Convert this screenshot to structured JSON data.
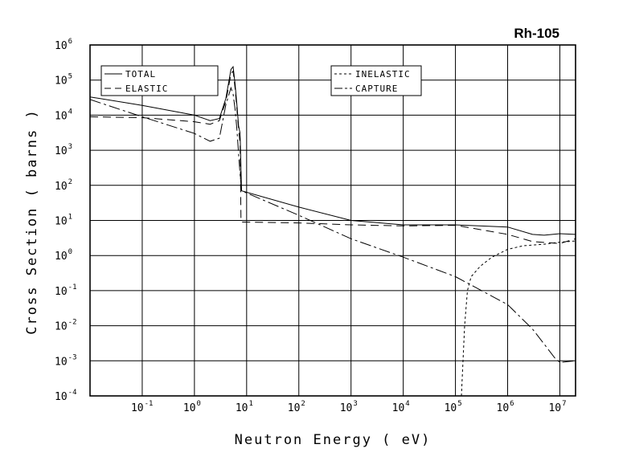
{
  "chart_data": {
    "type": "line",
    "title": "Rh-105",
    "xlabel": "Neutron Energy ( eV)",
    "ylabel": "Cross Section ( barns )",
    "xscale": "log",
    "yscale": "log",
    "xlim": [
      0.01,
      20000000
    ],
    "ylim": [
      0.0001,
      1000000
    ],
    "grid": true,
    "legend_placement": "top",
    "x_ticks": [
      {
        "base": "10",
        "exp": "-1",
        "value": 0.1
      },
      {
        "base": "10",
        "exp": "0",
        "value": 1
      },
      {
        "base": "10",
        "exp": "1",
        "value": 10
      },
      {
        "base": "10",
        "exp": "2",
        "value": 100
      },
      {
        "base": "10",
        "exp": "3",
        "value": 1000
      },
      {
        "base": "10",
        "exp": "4",
        "value": 10000
      },
      {
        "base": "10",
        "exp": "5",
        "value": 100000
      },
      {
        "base": "10",
        "exp": "6",
        "value": 1000000
      },
      {
        "base": "10",
        "exp": "7",
        "value": 10000000
      }
    ],
    "y_ticks": [
      {
        "base": "10",
        "exp": "6",
        "value": 1000000
      },
      {
        "base": "10",
        "exp": "5",
        "value": 100000
      },
      {
        "base": "10",
        "exp": "4",
        "value": 10000
      },
      {
        "base": "10",
        "exp": "3",
        "value": 1000
      },
      {
        "base": "10",
        "exp": "2",
        "value": 100
      },
      {
        "base": "10",
        "exp": "1",
        "value": 10
      },
      {
        "base": "10",
        "exp": "0",
        "value": 1
      },
      {
        "base": "10",
        "exp": "-1",
        "value": 0.1
      },
      {
        "base": "10",
        "exp": "-2",
        "value": 0.01
      },
      {
        "base": "10",
        "exp": "-3",
        "value": 0.001
      },
      {
        "base": "10",
        "exp": "-4",
        "value": 0.0001
      }
    ],
    "series": [
      {
        "name": "TOTAL",
        "dash": "",
        "points": [
          [
            0.01,
            33000
          ],
          [
            0.1,
            19000
          ],
          [
            1,
            10000
          ],
          [
            2,
            7000
          ],
          [
            3,
            8000
          ],
          [
            4,
            30000
          ],
          [
            5,
            200000
          ],
          [
            5.5,
            240000
          ],
          [
            6,
            80000
          ],
          [
            6.5,
            20000
          ],
          [
            7,
            5000
          ],
          [
            7.5,
            3000
          ],
          [
            8,
            70
          ],
          [
            100,
            24
          ],
          [
            1000,
            10
          ],
          [
            10000,
            7.5
          ],
          [
            100000,
            7.5
          ],
          [
            1000000,
            6.5
          ],
          [
            3000000,
            4
          ],
          [
            5000000,
            3.8
          ],
          [
            10000000,
            4.2
          ],
          [
            20000000,
            4
          ]
        ]
      },
      {
        "name": "ELASTIC",
        "dash": "10,6",
        "points": [
          [
            0.01,
            9000
          ],
          [
            0.1,
            8500
          ],
          [
            1,
            6500
          ],
          [
            2,
            5500
          ],
          [
            3,
            7000
          ],
          [
            4,
            25000
          ],
          [
            5,
            150000
          ],
          [
            5.5,
            180000
          ],
          [
            6,
            60000
          ],
          [
            6.5,
            15000
          ],
          [
            7,
            4000
          ],
          [
            7.5,
            1500
          ],
          [
            7.8,
            10
          ],
          [
            8,
            9
          ],
          [
            100,
            8.5
          ],
          [
            1000,
            7.5
          ],
          [
            10000,
            7
          ],
          [
            100000,
            7.3
          ],
          [
            1000000,
            4
          ],
          [
            3000000,
            2.5
          ],
          [
            10000000,
            2.2
          ],
          [
            20000000,
            3
          ]
        ]
      },
      {
        "name": "INELASTIC",
        "dash": "3,3",
        "points": [
          [
            130000,
            0.0001
          ],
          [
            150000,
            0.01
          ],
          [
            170000,
            0.1
          ],
          [
            200000,
            0.25
          ],
          [
            300000,
            0.5
          ],
          [
            500000,
            0.9
          ],
          [
            1000000,
            1.5
          ],
          [
            2000000,
            1.9
          ],
          [
            5000000,
            2.1
          ],
          [
            10000000,
            2.4
          ],
          [
            20000000,
            2.6
          ]
        ]
      },
      {
        "name": "CAPTURE",
        "dash": "14,4,3,4",
        "points": [
          [
            0.01,
            28000
          ],
          [
            0.1,
            9000
          ],
          [
            1,
            3000
          ],
          [
            2,
            1800
          ],
          [
            3,
            2200
          ],
          [
            4,
            20000
          ],
          [
            5,
            60000
          ],
          [
            5.5,
            40000
          ],
          [
            6,
            15000
          ],
          [
            6.5,
            4000
          ],
          [
            7,
            800
          ],
          [
            7.5,
            200
          ],
          [
            8,
            70
          ],
          [
            100,
            14
          ],
          [
            1000,
            3
          ],
          [
            10000,
            0.9
          ],
          [
            100000,
            0.25
          ],
          [
            1000000,
            0.04
          ],
          [
            3000000,
            0.008
          ],
          [
            5000000,
            0.003
          ],
          [
            8000000,
            0.0012
          ],
          [
            10000000,
            0.0009
          ],
          [
            20000000,
            0.001
          ]
        ]
      }
    ]
  }
}
